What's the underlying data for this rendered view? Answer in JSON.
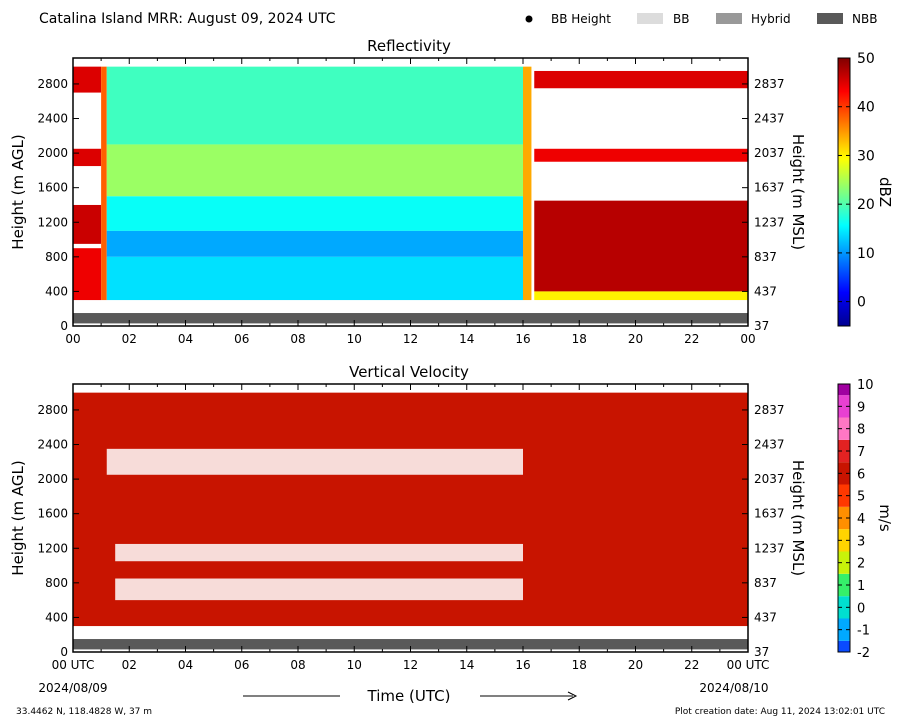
{
  "header": {
    "title": "Catalina Island MRR:  August 09, 2024 UTC",
    "legend": [
      {
        "label": "BB Height",
        "kind": "dot",
        "color": "#000000"
      },
      {
        "label": "BB",
        "kind": "swatch",
        "color": "#dcdcdc"
      },
      {
        "label": "Hybrid",
        "kind": "swatch",
        "color": "#999999"
      },
      {
        "label": "NBB",
        "kind": "swatch",
        "color": "#595959"
      }
    ]
  },
  "footer": {
    "location": "33.4462 N, 118.4828 W, 37 m",
    "creation": "Plot creation date: Aug 11, 2024 13:02:01 UTC",
    "xlabel": "Time (UTC)",
    "start_date": "2024/08/09",
    "end_date": "2024/08/10"
  },
  "chart_data": [
    {
      "type": "heatmap",
      "title": "Reflectivity",
      "xlabel": "Time (UTC)",
      "ylabel": "Height (m AGL)",
      "ylabel_right": "Height (m MSL)",
      "colorbar_label": "dBZ",
      "x_ticks": [
        "00",
        "02",
        "04",
        "06",
        "08",
        "10",
        "12",
        "14",
        "16",
        "18",
        "20",
        "22",
        "00"
      ],
      "xlim": [
        0,
        24
      ],
      "y_ticks": [
        0,
        400,
        800,
        1200,
        1600,
        2000,
        2400,
        2800
      ],
      "y_ticks_right": [
        37,
        437,
        837,
        1237,
        1637,
        2037,
        2437,
        2837
      ],
      "ylim": [
        0,
        3100
      ],
      "colorbar_ticks": [
        0,
        10,
        20,
        30,
        40,
        50
      ],
      "colorbar_range": [
        -5,
        50
      ],
      "layers": [
        {
          "x": [
            0.0,
            1.0
          ],
          "y": [
            2700,
            3000
          ],
          "value": 45
        },
        {
          "x": [
            0.0,
            1.0
          ],
          "y": [
            1850,
            2050
          ],
          "value": 45
        },
        {
          "x": [
            0.0,
            1.0
          ],
          "y": [
            950,
            1400
          ],
          "value": 46
        },
        {
          "x": [
            0.0,
            1.0
          ],
          "y": [
            300,
            900
          ],
          "value": 44
        },
        {
          "x": [
            1.0,
            1.2
          ],
          "y": [
            300,
            3000
          ],
          "value": 38
        },
        {
          "x": [
            1.2,
            16.0
          ],
          "y": [
            2100,
            3000
          ],
          "value": 19
        },
        {
          "x": [
            1.2,
            16.0
          ],
          "y": [
            1500,
            2100
          ],
          "value": 24
        },
        {
          "x": [
            1.2,
            16.0
          ],
          "y": [
            1100,
            1500
          ],
          "value": 16
        },
        {
          "x": [
            1.2,
            16.0
          ],
          "y": [
            800,
            1100
          ],
          "value": 11
        },
        {
          "x": [
            1.2,
            16.0
          ],
          "y": [
            300,
            800
          ],
          "value": 14
        },
        {
          "x": [
            16.0,
            16.3
          ],
          "y": [
            300,
            3000
          ],
          "value": 34
        },
        {
          "x": [
            16.4,
            24.0
          ],
          "y": [
            2750,
            2950
          ],
          "value": 45
        },
        {
          "x": [
            16.4,
            24.0
          ],
          "y": [
            1900,
            2050
          ],
          "value": 44
        },
        {
          "x": [
            16.4,
            24.0
          ],
          "y": [
            400,
            1450
          ],
          "value": 47
        },
        {
          "x": [
            16.4,
            24.0
          ],
          "y": [
            300,
            400
          ],
          "value": 30
        }
      ],
      "bb_type_strip": {
        "y": [
          30,
          150
        ],
        "category": "NBB"
      }
    },
    {
      "type": "heatmap",
      "title": "Vertical Velocity",
      "xlabel": "Time (UTC)",
      "ylabel": "Height (m AGL)",
      "ylabel_right": "Height (m MSL)",
      "colorbar_label": "m/s",
      "x_ticks": [
        "00 UTC",
        "02",
        "04",
        "06",
        "08",
        "10",
        "12",
        "14",
        "16",
        "18",
        "20",
        "22",
        "00 UTC"
      ],
      "xlim": [
        0,
        24
      ],
      "y_ticks": [
        0,
        400,
        800,
        1200,
        1600,
        2000,
        2400,
        2800
      ],
      "y_ticks_right": [
        37,
        437,
        837,
        1237,
        1637,
        2037,
        2437,
        2837
      ],
      "ylim": [
        0,
        3100
      ],
      "colorbar_ticks": [
        -2,
        -1,
        0,
        1,
        2,
        3,
        4,
        5,
        6,
        7,
        8,
        9,
        10
      ],
      "colorbar_range": [
        -2,
        10
      ],
      "layers": [
        {
          "x": [
            0.0,
            24.0
          ],
          "y": [
            300,
            3000
          ],
          "value": 6
        }
      ],
      "gaps": [
        {
          "x": [
            1.2,
            16.0
          ],
          "y": [
            2050,
            2350
          ]
        },
        {
          "x": [
            1.5,
            16.0
          ],
          "y": [
            1050,
            1250
          ]
        },
        {
          "x": [
            1.5,
            16.0
          ],
          "y": [
            600,
            850
          ]
        }
      ],
      "bb_type_strip": {
        "y": [
          30,
          150
        ],
        "category": "NBB"
      }
    }
  ]
}
